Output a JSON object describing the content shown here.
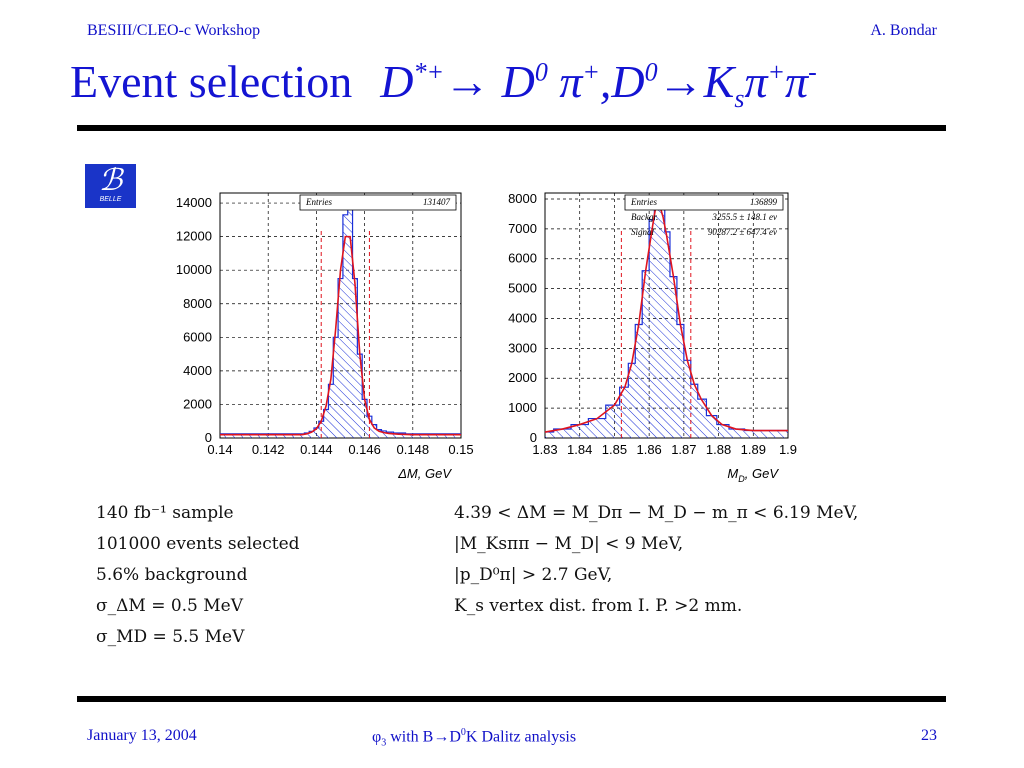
{
  "header": {
    "left": "BESIII/CLEO-c Workshop",
    "right": "A. Bondar"
  },
  "title": {
    "text": "Event selection",
    "formula": {
      "D": "D",
      "star_plus": "*+",
      "arrow": "→",
      "D0_a": "D",
      "zero_a": "0",
      "pi_plus_a": "π",
      "plus_a": "+",
      "comma": ",",
      "D0_b": "D",
      "zero_b": "0",
      "arrow2": "→",
      "K": "K",
      "s": "s",
      "pi1": "π",
      "plus1": "+",
      "pi2": "π",
      "minus": "-"
    }
  },
  "logo": {
    "letter": "ℬ",
    "text": "BELLE"
  },
  "colors": {
    "accent": "#1414d2",
    "hist": "#1a2fd8",
    "fit": "#e0141e",
    "cut": "#e0141e"
  },
  "chart_data": [
    {
      "type": "histogram",
      "title": "",
      "stats": [
        {
          "label": "Entries",
          "value": "131407"
        }
      ],
      "xlabel": "ΔM, GeV",
      "ylabel": "",
      "xlim": [
        0.14,
        0.15
      ],
      "ylim": [
        0,
        14600
      ],
      "x_ticks": [
        "0.14",
        "0.142",
        "0.144",
        "0.146",
        "0.148",
        "0.15"
      ],
      "y_ticks": [
        "0",
        "2000",
        "4000",
        "6000",
        "8000",
        "10000",
        "12000",
        "14000"
      ],
      "grid": true,
      "x": [
        0.1434,
        0.1436,
        0.1438,
        0.144,
        0.1442,
        0.1444,
        0.1446,
        0.1448,
        0.145,
        0.1452,
        0.1454,
        0.1456,
        0.1458,
        0.146,
        0.1462,
        0.1464,
        0.1466,
        0.1468,
        0.147,
        0.1474,
        0.148
      ],
      "series": [
        {
          "values": [
            250,
            300,
            400,
            600,
            1000,
            1700,
            3200,
            6000,
            9500,
            13300,
            13900,
            9500,
            5000,
            2300,
            1300,
            800,
            500,
            420,
            350,
            300,
            250
          ]
        },
        {
          "values": [
            200,
            250,
            350,
            550,
            1000,
            1900,
            3500,
            6500,
            10000,
            12000,
            12000,
            9200,
            5000,
            2300,
            1100,
            600,
            400,
            320,
            270,
            230,
            200
          ]
        }
      ],
      "cut_lines": [
        0.1442,
        0.1462
      ]
    },
    {
      "type": "histogram",
      "title": "",
      "stats": [
        {
          "label": "Entries",
          "value": "136899"
        },
        {
          "label": "Backgr.",
          "value": "3255.5 ±  148.1  ev"
        },
        {
          "label": "Signal",
          "value": "90287.2 ±  647.4  ev"
        }
      ],
      "xlabel": "M",
      "xlabel_sub": "D",
      "xlabel_unit": ", GeV",
      "ylabel": "",
      "xlim": [
        1.83,
        1.9
      ],
      "ylim": [
        0,
        8200
      ],
      "x_ticks": [
        "1.83",
        "1.84",
        "1.85",
        "1.86",
        "1.87",
        "1.88",
        "1.89",
        "1.9"
      ],
      "y_ticks": [
        "0",
        "1000",
        "2000",
        "3000",
        "4000",
        "5000",
        "6000",
        "7000",
        "8000"
      ],
      "grid": true,
      "x": [
        1.83,
        1.835,
        1.84,
        1.845,
        1.85,
        1.853,
        1.855,
        1.857,
        1.859,
        1.861,
        1.862,
        1.863,
        1.864,
        1.865,
        1.867,
        1.869,
        1.871,
        1.873,
        1.875,
        1.878,
        1.881,
        1.885,
        1.89
      ],
      "series": [
        {
          "values": [
            200,
            300,
            450,
            650,
            1100,
            1700,
            2500,
            3800,
            5600,
            7300,
            7900,
            7800,
            7700,
            6900,
            5400,
            3800,
            2600,
            1800,
            1300,
            750,
            450,
            300,
            250
          ]
        },
        {
          "values": [
            200,
            300,
            450,
            650,
            1100,
            1700,
            2500,
            3800,
            5600,
            7100,
            7800,
            7800,
            7400,
            6800,
            5400,
            3800,
            2600,
            1800,
            1300,
            750,
            450,
            300,
            250
          ]
        }
      ],
      "cut_lines": [
        1.852,
        1.872
      ]
    }
  ],
  "notes_left": [
    "140 fb⁻¹ sample",
    "101000 events selected",
    "5.6% background",
    "σ_ΔM = 0.5 MeV",
    "σ_MD = 5.5 MeV"
  ],
  "notes_right": [
    "4.39 < ΔM = M_Dπ − M_D − m_π < 6.19 MeV,",
    "|M_Ksππ − M_D| < 9 MeV,",
    "|p_D⁰π| > 2.7 GeV,",
    "K_s vertex dist. from I. P. >2 mm."
  ],
  "footer": {
    "left": "January 13, 2004",
    "center_phi": "φ",
    "center_phi_sub": "3",
    "center_with": " with B→D",
    "center_zero": "0",
    "center_tail": "K Dalitz analysis",
    "right": "23"
  }
}
